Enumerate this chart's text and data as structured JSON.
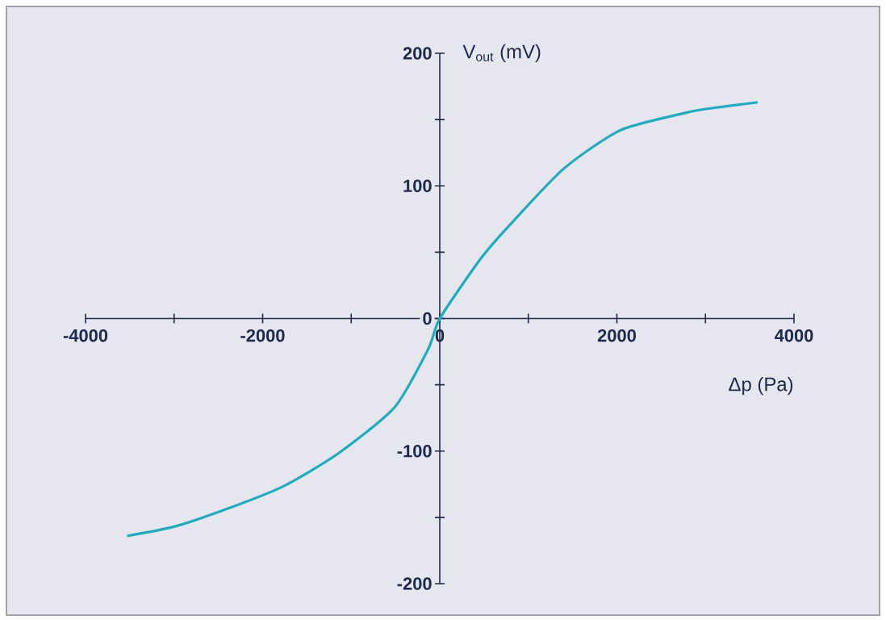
{
  "chart_data": {
    "type": "line",
    "xlabel": "Δp (Pa)",
    "ylabel": "V$_{out}$ (mV)",
    "x": [
      -3530,
      -3000,
      -2420,
      -1780,
      -1150,
      -510,
      -130,
      0,
      450,
      770,
      1400,
      2040,
      2770,
      3000,
      3590
    ],
    "series": [
      {
        "color": "#22aabf",
        "values": [
          -164,
          -157,
          -144,
          -127,
          -102,
          -67,
          -23,
          0,
          44,
          69,
          113,
          142,
          155,
          158,
          163
        ]
      }
    ],
    "xlim": [
      -4000,
      4000
    ],
    "ylim": [
      -200,
      200
    ],
    "xticks": [
      -4000,
      {
        "value": -3000,
        "label": null
      },
      -2000,
      {
        "value": -1000,
        "label": null
      },
      0,
      {
        "value": 1000,
        "label": null
      },
      2000,
      {
        "value": 3000,
        "label": null
      },
      4000
    ],
    "yticks": [
      -200,
      {
        "value": -150,
        "label": null
      },
      -100,
      {
        "value": -50,
        "label": null
      },
      0,
      {
        "value": 50,
        "label": null
      },
      100,
      {
        "value": 150,
        "label": null
      },
      200
    ],
    "grid": false,
    "marker": "none",
    "line_style": "solid"
  }
}
